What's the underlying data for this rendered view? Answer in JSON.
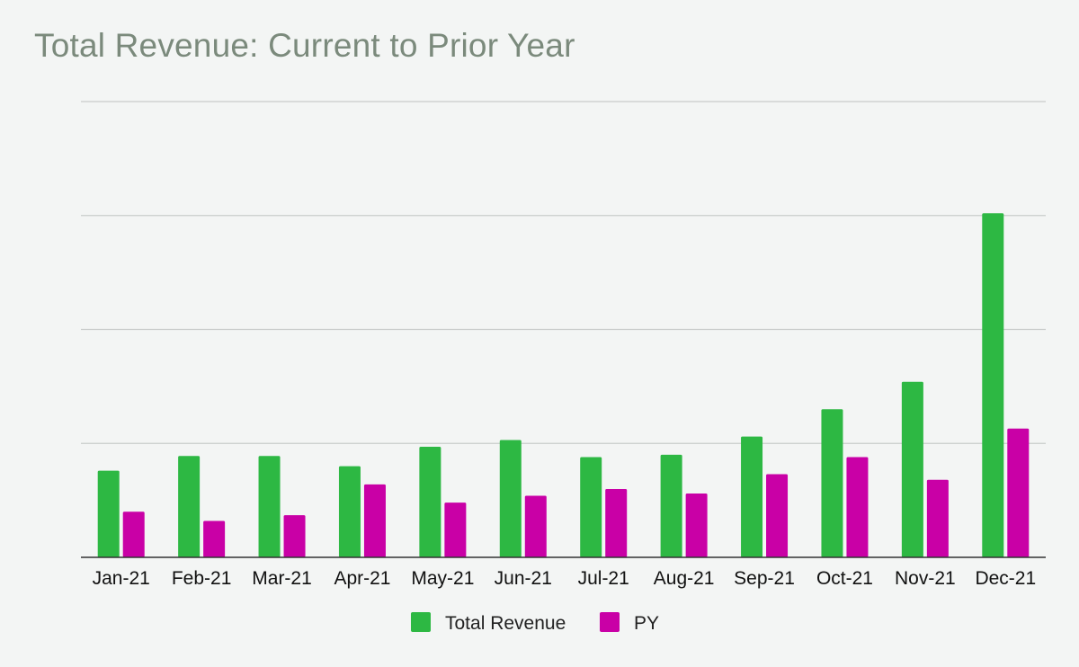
{
  "title": "Total Revenue: Current to Prior Year",
  "chart_data": {
    "type": "bar",
    "title": "Total Revenue: Current to Prior Year",
    "categories": [
      "Jan-21",
      "Feb-21",
      "Mar-21",
      "Apr-21",
      "May-21",
      "Jun-21",
      "Jul-21",
      "Aug-21",
      "Sep-21",
      "Oct-21",
      "Nov-21",
      "Dec-21"
    ],
    "series": [
      {
        "name": "Total Revenue",
        "color": "#2db843",
        "values": [
          0.76,
          0.89,
          0.89,
          0.8,
          0.97,
          1.03,
          0.88,
          0.9,
          1.06,
          1.3,
          1.54,
          3.02
        ]
      },
      {
        "name": "PY",
        "color": "#c900a6",
        "values": [
          0.4,
          0.32,
          0.37,
          0.64,
          0.48,
          0.54,
          0.6,
          0.56,
          0.73,
          0.88,
          0.68,
          1.13
        ]
      }
    ],
    "ylim": [
      0,
      4
    ],
    "y_gridlines": [
      1,
      2,
      3,
      4
    ],
    "y_tick_labels_shown": false,
    "grid": true,
    "legend": "bottom-center",
    "xlabel": "",
    "ylabel": ""
  }
}
